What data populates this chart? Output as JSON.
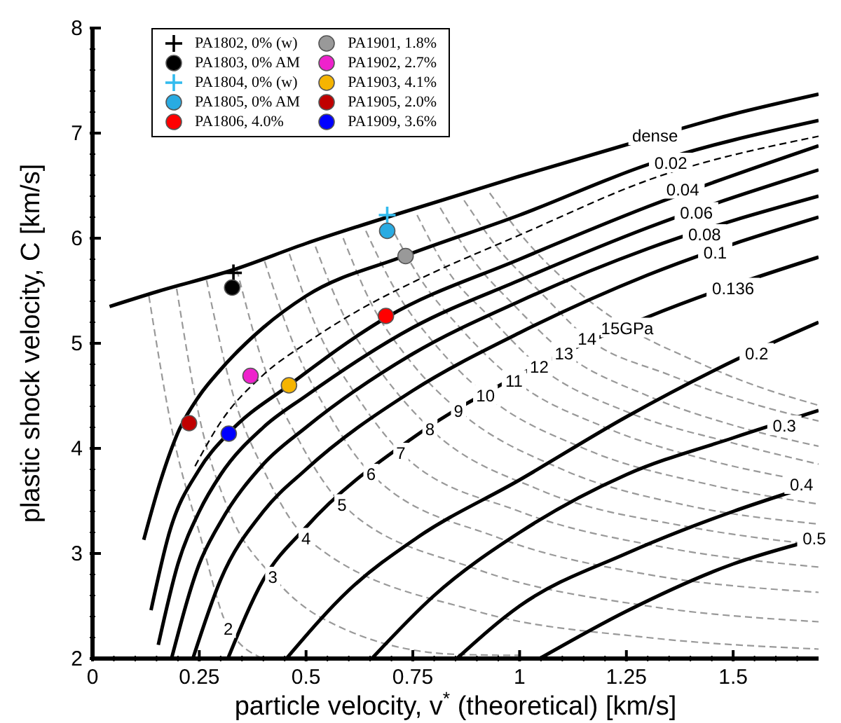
{
  "chart_data": {
    "type": "line",
    "xlabel": "particle velocity, v$^{*}$ (theoretical) [km/s]",
    "ylabel": "plastic shock velocity, C [km/s]",
    "xlim": [
      0,
      1.7
    ],
    "ylim": [
      2,
      8
    ],
    "xticks": [
      0,
      {
        "value": 0.05,
        "label": null
      },
      {
        "value": 0.1,
        "label": null
      },
      {
        "value": 0.15,
        "label": null
      },
      {
        "value": 0.2,
        "label": null
      },
      0.25,
      {
        "value": 0.3,
        "label": null
      },
      {
        "value": 0.35,
        "label": null
      },
      {
        "value": 0.4,
        "label": null
      },
      {
        "value": 0.45,
        "label": null
      },
      0.5,
      {
        "value": 0.55,
        "label": null
      },
      {
        "value": 0.6,
        "label": null
      },
      {
        "value": 0.65,
        "label": null
      },
      {
        "value": 0.7,
        "label": null
      },
      0.75,
      {
        "value": 0.8,
        "label": null
      },
      {
        "value": 0.85,
        "label": null
      },
      {
        "value": 0.9,
        "label": null
      },
      {
        "value": 0.95,
        "label": null
      },
      1,
      {
        "value": 1.05,
        "label": null
      },
      {
        "value": 1.1,
        "label": null
      },
      {
        "value": 1.15,
        "label": null
      },
      {
        "value": 1.2,
        "label": null
      },
      1.25,
      {
        "value": 1.3,
        "label": null
      },
      {
        "value": 1.35,
        "label": null
      },
      {
        "value": 1.4,
        "label": null
      },
      {
        "value": 1.45,
        "label": null
      },
      1.5,
      {
        "value": 1.55,
        "label": null
      },
      {
        "value": 1.6,
        "label": null
      },
      {
        "value": 1.65,
        "label": null
      }
    ],
    "yticks": [
      2,
      {
        "value": 2.2,
        "label": null
      },
      {
        "value": 2.4,
        "label": null
      },
      {
        "value": 2.6,
        "label": null
      },
      {
        "value": 2.8,
        "label": null
      },
      3,
      {
        "value": 3.2,
        "label": null
      },
      {
        "value": 3.4,
        "label": null
      },
      {
        "value": 3.6,
        "label": null
      },
      {
        "value": 3.8,
        "label": null
      },
      4,
      {
        "value": 4.2,
        "label": null
      },
      {
        "value": 4.4,
        "label": null
      },
      {
        "value": 4.6,
        "label": null
      },
      {
        "value": 4.8,
        "label": null
      },
      5,
      {
        "value": 5.2,
        "label": null
      },
      {
        "value": 5.4,
        "label": null
      },
      {
        "value": 5.6,
        "label": null
      },
      {
        "value": 5.8,
        "label": null
      },
      6,
      {
        "value": 6.2,
        "label": null
      },
      {
        "value": 6.4,
        "label": null
      },
      {
        "value": 6.6,
        "label": null
      },
      {
        "value": 6.8,
        "label": null
      },
      7,
      {
        "value": 7.2,
        "label": null
      },
      {
        "value": 7.4,
        "label": null
      },
      {
        "value": 7.6,
        "label": null
      },
      {
        "value": 7.8,
        "label": null
      },
      8
    ],
    "legend": "top left",
    "series": [
      {
        "type": "line",
        "color": "#999999",
        "line_style": "dashed",
        "x": [
          0.132,
          0.19,
          0.25,
          0.318,
          0.4
        ],
        "values": [
          5.45,
          4.1,
          3.2,
          2.29,
          2.0
        ]
      },
      {
        "type": "line",
        "color": "#999999",
        "line_style": "dashed",
        "x": [
          0.197,
          0.25,
          0.32,
          0.422,
          0.535,
          0.85,
          1.0
        ],
        "values": [
          5.52,
          4.3,
          3.4,
          2.78,
          2.39,
          2.04,
          2.03
        ]
      },
      {
        "type": "line",
        "color": "#999999",
        "line_style": "dashed",
        "x": [
          0.267,
          0.33,
          0.4,
          0.5,
          0.9,
          1.3,
          1.7
        ],
        "values": [
          5.6,
          4.5,
          3.8,
          3.15,
          2.45,
          2.2,
          2.09
        ]
      },
      {
        "type": "line",
        "color": "#999999",
        "line_style": "dashed",
        "x": [
          0.338,
          0.4,
          0.48,
          0.584,
          0.9,
          1.3,
          1.7
        ],
        "values": [
          5.7,
          4.8,
          4.1,
          3.47,
          2.85,
          2.5,
          2.35
        ]
      },
      {
        "type": "line",
        "color": "#999999",
        "line_style": "dashed",
        "x": [
          0.403,
          0.47,
          0.55,
          0.652,
          0.95,
          1.3,
          1.7
        ],
        "values": [
          5.78,
          5.0,
          4.35,
          3.76,
          3.15,
          2.8,
          2.63
        ]
      },
      {
        "type": "line",
        "color": "#999999",
        "line_style": "dashed",
        "x": [
          0.461,
          0.53,
          0.61,
          0.722,
          1.0,
          1.35,
          1.7
        ],
        "values": [
          5.85,
          5.1,
          4.55,
          3.96,
          3.4,
          3.05,
          2.87
        ]
      },
      {
        "type": "line",
        "color": "#999999",
        "line_style": "dashed",
        "x": [
          0.522,
          0.59,
          0.68,
          0.79,
          1.05,
          1.4,
          1.7
        ],
        "values": [
          5.92,
          5.25,
          4.7,
          4.19,
          3.6,
          3.25,
          3.08
        ]
      },
      {
        "type": "line",
        "color": "#999999",
        "line_style": "dashed",
        "x": [
          0.587,
          0.65,
          0.74,
          0.857,
          1.1,
          1.4,
          1.7
        ],
        "values": [
          6.0,
          5.4,
          4.85,
          4.36,
          3.8,
          3.45,
          3.28
        ]
      },
      {
        "type": "line",
        "color": "#999999",
        "line_style": "dashed",
        "x": [
          0.64,
          0.71,
          0.8,
          0.92,
          1.15,
          1.45,
          1.7
        ],
        "values": [
          6.07,
          5.5,
          5.0,
          4.51,
          4.0,
          3.65,
          3.47
        ]
      },
      {
        "type": "line",
        "color": "#999999",
        "line_style": "dashed",
        "x": [
          0.695,
          0.77,
          0.86,
          0.987,
          1.2,
          1.45,
          1.7
        ],
        "values": [
          6.14,
          5.6,
          5.15,
          4.65,
          4.2,
          3.88,
          3.67
        ]
      },
      {
        "type": "line",
        "color": "#999999",
        "line_style": "dashed",
        "x": [
          0.76,
          0.83,
          0.93,
          1.046,
          1.25,
          1.5,
          1.7
        ],
        "values": [
          6.22,
          5.7,
          5.25,
          4.78,
          4.35,
          4.05,
          3.85
        ]
      },
      {
        "type": "line",
        "color": "#999999",
        "line_style": "dashed",
        "x": [
          0.814,
          0.89,
          0.99,
          1.104,
          1.3,
          1.5,
          1.7
        ],
        "values": [
          6.29,
          5.8,
          5.35,
          4.91,
          4.5,
          4.22,
          4.02
        ]
      },
      {
        "type": "line",
        "color": "#999999",
        "line_style": "dashed",
        "x": [
          0.87,
          0.95,
          1.05,
          1.158,
          1.35,
          1.55,
          1.7
        ],
        "values": [
          6.36,
          5.9,
          5.48,
          5.05,
          4.7,
          4.42,
          4.26
        ]
      },
      {
        "type": "line",
        "color": "#999999",
        "line_style": "dashed",
        "x": [
          0.93,
          1.01,
          1.12,
          1.252,
          1.4,
          1.55,
          1.7
        ],
        "values": [
          6.43,
          6.0,
          5.55,
          5.15,
          4.85,
          4.6,
          4.41
        ]
      },
      {
        "type": "line",
        "color": "#000000",
        "line_style": "solid",
        "x": [
          0.04,
          0.15,
          0.33,
          0.5,
          0.69,
          1.0,
          1.25,
          1.5,
          1.7
        ],
        "values": [
          5.35,
          5.49,
          5.7,
          5.95,
          6.2,
          6.59,
          6.89,
          7.18,
          7.37
        ]
      },
      {
        "type": "line",
        "color": "#000000",
        "line_style": "solid",
        "x": [
          0.12,
          0.16,
          0.2,
          0.25,
          0.3,
          0.4,
          0.5,
          0.73,
          1.0,
          1.3,
          1.7
        ],
        "values": [
          3.13,
          3.7,
          4.15,
          4.5,
          4.75,
          5.15,
          5.45,
          5.83,
          6.22,
          6.7,
          7.12
        ]
      },
      {
        "type": "line",
        "color": "#000000",
        "line_style": "dashed",
        "x": [
          0.24,
          0.3,
          0.4,
          0.5,
          0.63,
          0.76,
          1.0,
          1.32,
          1.7
        ],
        "values": [
          3.83,
          4.25,
          4.7,
          5.0,
          5.33,
          5.6,
          6.03,
          6.58,
          6.97
        ]
      },
      {
        "type": "line",
        "color": "#000000",
        "line_style": "solid",
        "x": [
          0.137,
          0.18,
          0.25,
          0.32,
          0.46,
          0.69,
          1.0,
          1.3,
          1.7
        ],
        "values": [
          2.46,
          3.2,
          3.8,
          4.15,
          4.6,
          5.25,
          5.8,
          6.3,
          6.88
        ]
      },
      {
        "type": "line",
        "color": "#000000",
        "line_style": "solid",
        "x": [
          0.154,
          0.2,
          0.25,
          0.3,
          0.4,
          0.5,
          0.75,
          1.0,
          1.3,
          1.7
        ],
        "values": [
          2.13,
          2.9,
          3.4,
          3.75,
          4.2,
          4.5,
          5.15,
          5.6,
          6.1,
          6.65
        ]
      },
      {
        "type": "line",
        "color": "#000000",
        "line_style": "solid",
        "x": [
          0.185,
          0.25,
          0.3,
          0.4,
          0.5,
          0.75,
          1.0,
          1.3,
          1.7
        ],
        "values": [
          2.0,
          2.9,
          3.3,
          3.85,
          4.2,
          4.9,
          5.4,
          5.9,
          6.4
        ]
      },
      {
        "type": "line",
        "color": "#000000",
        "line_style": "solid",
        "x": [
          0.235,
          0.3,
          0.4,
          0.5,
          0.75,
          1.0,
          1.3,
          1.7
        ],
        "values": [
          2.0,
          2.75,
          3.4,
          3.8,
          4.55,
          5.1,
          5.65,
          6.2
        ]
      },
      {
        "type": "line",
        "color": "#000000",
        "line_style": "solid",
        "x": [
          0.317,
          0.4,
          0.5,
          0.75,
          1.0,
          1.3,
          1.7
        ],
        "values": [
          2.0,
          2.75,
          3.25,
          4.1,
          4.7,
          5.25,
          5.82
        ]
      },
      {
        "type": "line",
        "color": "#000000",
        "line_style": "solid",
        "x": [
          0.454,
          0.6,
          0.76,
          1.0,
          1.25,
          1.52,
          1.7
        ],
        "values": [
          2.0,
          2.65,
          3.15,
          3.7,
          4.3,
          4.87,
          5.2
        ]
      },
      {
        "type": "line",
        "color": "#000000",
        "line_style": "solid",
        "x": [
          0.654,
          0.8,
          1.0,
          1.25,
          1.5,
          1.7
        ],
        "values": [
          2.0,
          2.6,
          3.2,
          3.75,
          4.1,
          4.36
        ]
      },
      {
        "type": "line",
        "color": "#000000",
        "line_style": "solid",
        "x": [
          0.853,
          1.0,
          1.25,
          1.5,
          1.64
        ],
        "values": [
          2.0,
          2.5,
          3.0,
          3.4,
          3.59
        ]
      },
      {
        "type": "line",
        "color": "#000000",
        "line_style": "solid",
        "x": [
          1.047,
          1.25,
          1.5,
          1.69
        ],
        "values": [
          2.0,
          2.45,
          2.9,
          3.13
        ]
      },
      {
        "type": "scatter",
        "name": "PA1802, 0% (w)",
        "color": "#000000",
        "marker": "cross",
        "x": [
          0.33
        ],
        "values": [
          5.67
        ]
      },
      {
        "type": "scatter",
        "name": "PA1803, 0% AM",
        "color": "#000000",
        "marker": "circle",
        "x": [
          0.327
        ],
        "values": [
          5.53
        ]
      },
      {
        "type": "scatter",
        "name": "PA1804, 0% (w)",
        "color": "#33bbee",
        "marker": "cross",
        "x": [
          0.69
        ],
        "values": [
          6.22
        ]
      },
      {
        "type": "scatter",
        "name": "PA1805, 0% AM",
        "color": "#29abe2",
        "marker": "circle",
        "x": [
          0.69
        ],
        "values": [
          6.07
        ]
      },
      {
        "type": "scatter",
        "name": "PA1806, 4.0%",
        "color": "#ff0000",
        "marker": "circle",
        "x": [
          0.687
        ],
        "values": [
          5.26
        ]
      },
      {
        "type": "scatter",
        "name": "PA1901, 1.8%",
        "color": "#999999",
        "marker": "circle",
        "x": [
          0.733
        ],
        "values": [
          5.83
        ]
      },
      {
        "type": "scatter",
        "name": "PA1902, 2.7%",
        "color": "#ee22cc",
        "marker": "circle",
        "x": [
          0.37
        ],
        "values": [
          4.69
        ]
      },
      {
        "type": "scatter",
        "name": "PA1903, 4.1%",
        "color": "#f5b400",
        "marker": "circle",
        "x": [
          0.46
        ],
        "values": [
          4.6
        ]
      },
      {
        "type": "scatter",
        "name": "PA1905, 2.0%",
        "color": "#c00000",
        "marker": "circle",
        "x": [
          0.226
        ],
        "values": [
          4.24
        ]
      },
      {
        "type": "scatter",
        "name": "PA1909, 3.6%",
        "color": "#0000ff",
        "marker": "circle",
        "x": [
          0.319
        ],
        "values": [
          4.14
        ]
      }
    ],
    "annotations": [
      {
        "text": "dense",
        "x": 1.317,
        "y": 6.98
      },
      {
        "text": "0.02",
        "x": 1.354,
        "y": 6.72
      },
      {
        "text": "0.04",
        "x": 1.382,
        "y": 6.47
      },
      {
        "text": "0.06",
        "x": 1.414,
        "y": 6.25
      },
      {
        "text": "0.08",
        "x": 1.433,
        "y": 6.04
      },
      {
        "text": "0.1",
        "x": 1.458,
        "y": 5.87
      },
      {
        "text": "0.136",
        "x": 1.5,
        "y": 5.53
      },
      {
        "text": "0.2",
        "x": 1.555,
        "y": 4.91
      },
      {
        "text": "0.3",
        "x": 1.62,
        "y": 4.22
      },
      {
        "text": "0.4",
        "x": 1.66,
        "y": 3.66
      },
      {
        "text": "0.5",
        "x": 1.69,
        "y": 3.15
      },
      {
        "text": "2",
        "x": 0.318,
        "y": 2.29
      },
      {
        "text": "3",
        "x": 0.422,
        "y": 2.78
      },
      {
        "text": "4",
        "x": 0.5,
        "y": 3.15
      },
      {
        "text": "5",
        "x": 0.584,
        "y": 3.47
      },
      {
        "text": "6",
        "x": 0.652,
        "y": 3.76
      },
      {
        "text": "7",
        "x": 0.722,
        "y": 3.96
      },
      {
        "text": "8",
        "x": 0.79,
        "y": 4.19
      },
      {
        "text": "9",
        "x": 0.857,
        "y": 4.36
      },
      {
        "text": "10",
        "x": 0.92,
        "y": 4.51
      },
      {
        "text": "11",
        "x": 0.987,
        "y": 4.65
      },
      {
        "text": "12",
        "x": 1.046,
        "y": 4.78
      },
      {
        "text": "13",
        "x": 1.104,
        "y": 4.91
      },
      {
        "text": "14",
        "x": 1.158,
        "y": 5.05
      },
      {
        "text": "15GPa",
        "x": 1.252,
        "y": 5.15
      }
    ]
  }
}
